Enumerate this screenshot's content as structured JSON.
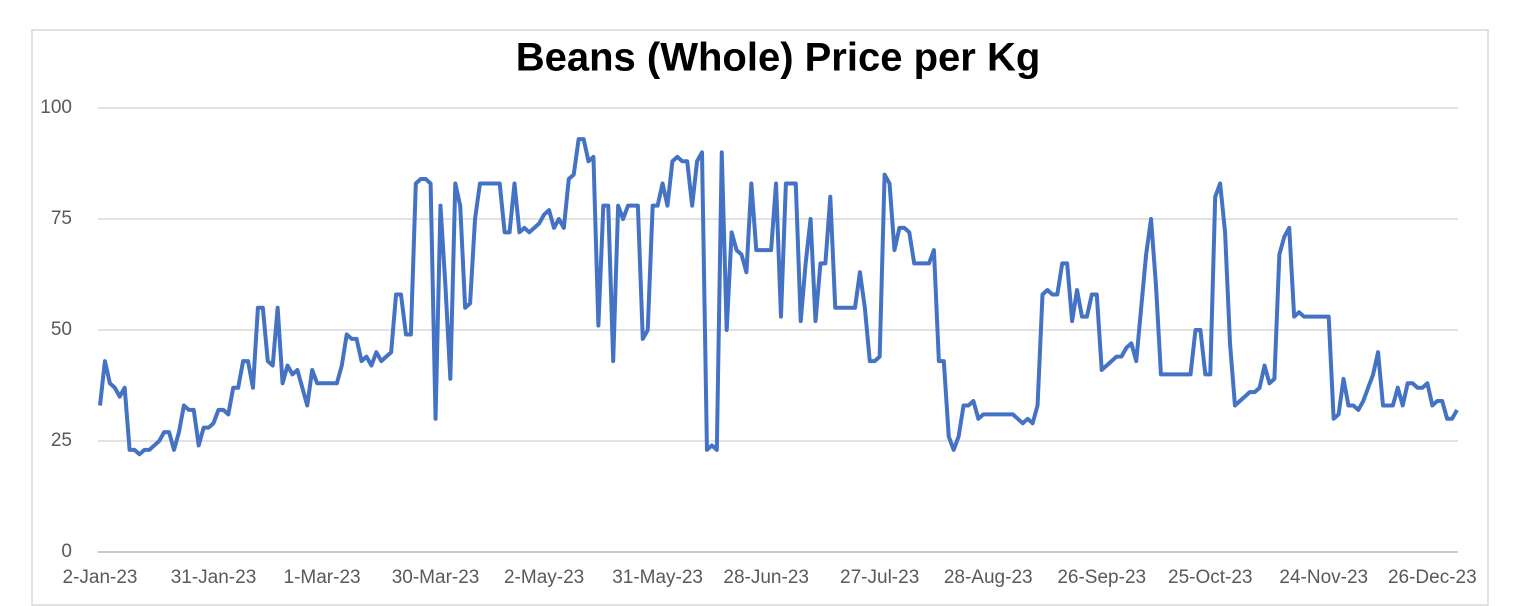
{
  "chart_data": {
    "type": "line",
    "title": "Beans (Whole) Price per Kg",
    "color": "#4472c4",
    "grid": true,
    "ylim": [
      0,
      100
    ],
    "yticks": [
      0,
      25,
      50,
      75,
      100
    ],
    "categories": [
      "2-Jan-23",
      null,
      null,
      null,
      null,
      null,
      null,
      null,
      null,
      null,
      null,
      null,
      null,
      null,
      null,
      null,
      null,
      null,
      null,
      null,
      null,
      null,
      null,
      "31-Jan-23",
      null,
      null,
      null,
      null,
      null,
      null,
      null,
      null,
      null,
      null,
      null,
      null,
      null,
      null,
      null,
      null,
      null,
      null,
      null,
      null,
      null,
      "1-Mar-23",
      null,
      null,
      null,
      null,
      null,
      null,
      null,
      null,
      null,
      null,
      null,
      null,
      null,
      null,
      null,
      null,
      null,
      null,
      null,
      null,
      null,
      null,
      "30-Mar-23",
      null,
      null,
      null,
      null,
      null,
      null,
      null,
      null,
      null,
      null,
      null,
      null,
      null,
      null,
      null,
      null,
      null,
      null,
      null,
      null,
      null,
      "2-May-23",
      null,
      null,
      null,
      null,
      null,
      null,
      null,
      null,
      null,
      null,
      null,
      null,
      null,
      null,
      null,
      null,
      null,
      null,
      null,
      null,
      null,
      null,
      "31-May-23",
      null,
      null,
      null,
      null,
      null,
      null,
      null,
      null,
      null,
      null,
      null,
      null,
      null,
      null,
      null,
      null,
      null,
      null,
      null,
      null,
      null,
      "28-Jun-23",
      null,
      null,
      null,
      null,
      null,
      null,
      null,
      null,
      null,
      null,
      null,
      null,
      null,
      null,
      null,
      null,
      null,
      null,
      null,
      null,
      null,
      null,
      "27-Jul-23",
      null,
      null,
      null,
      null,
      null,
      null,
      null,
      null,
      null,
      null,
      null,
      null,
      null,
      null,
      null,
      null,
      null,
      null,
      null,
      null,
      null,
      "28-Aug-23",
      null,
      null,
      null,
      null,
      null,
      null,
      null,
      null,
      null,
      null,
      null,
      null,
      null,
      null,
      null,
      null,
      null,
      null,
      null,
      null,
      null,
      null,
      "26-Sep-23",
      null,
      null,
      null,
      null,
      null,
      null,
      null,
      null,
      null,
      null,
      null,
      null,
      null,
      null,
      null,
      null,
      null,
      null,
      null,
      null,
      null,
      "25-Oct-23",
      null,
      null,
      null,
      null,
      null,
      null,
      null,
      null,
      null,
      null,
      null,
      null,
      null,
      null,
      null,
      null,
      null,
      null,
      null,
      null,
      null,
      null,
      "24-Nov-23",
      null,
      null,
      null,
      null,
      null,
      null,
      null,
      null,
      null,
      null,
      null,
      null,
      null,
      null,
      null,
      null,
      null,
      null,
      null,
      null,
      null,
      "26-Dec-23",
      null,
      null,
      null,
      null,
      null
    ],
    "values": [
      33,
      43,
      38,
      37,
      35,
      37,
      23,
      23,
      22,
      23,
      23,
      24,
      25,
      27,
      27,
      23,
      27,
      33,
      32,
      32,
      24,
      28,
      28,
      29,
      32,
      32,
      31,
      37,
      37,
      43,
      43,
      37,
      55,
      55,
      43,
      42,
      55,
      38,
      42,
      40,
      41,
      37,
      33,
      41,
      38,
      38,
      38,
      38,
      38,
      42,
      49,
      48,
      48,
      43,
      44,
      42,
      45,
      43,
      44,
      45,
      58,
      58,
      49,
      49,
      83,
      84,
      84,
      83,
      30,
      78,
      60,
      39,
      83,
      78,
      55,
      56,
      75,
      83,
      83,
      83,
      83,
      83,
      72,
      72,
      83,
      72,
      73,
      72,
      73,
      74,
      76,
      77,
      73,
      75,
      73,
      84,
      85,
      93,
      93,
      88,
      89,
      51,
      78,
      78,
      43,
      78,
      75,
      78,
      78,
      78,
      48,
      50,
      78,
      78,
      83,
      78,
      88,
      89,
      88,
      88,
      78,
      88,
      90,
      23,
      24,
      23,
      90,
      50,
      72,
      68,
      67,
      63,
      83,
      68,
      68,
      68,
      68,
      83,
      53,
      83,
      83,
      83,
      52,
      65,
      75,
      52,
      65,
      65,
      80,
      55,
      55,
      55,
      55,
      55,
      63,
      55,
      43,
      43,
      44,
      85,
      83,
      68,
      73,
      73,
      72,
      65,
      65,
      65,
      65,
      68,
      43,
      43,
      26,
      23,
      26,
      33,
      33,
      34,
      30,
      31,
      31,
      31,
      31,
      31,
      31,
      31,
      30,
      29,
      30,
      29,
      33,
      58,
      59,
      58,
      58,
      65,
      65,
      52,
      59,
      53,
      53,
      58,
      58,
      41,
      42,
      43,
      44,
      44,
      46,
      47,
      43,
      55,
      67,
      75,
      60,
      40,
      40,
      40,
      40,
      40,
      40,
      40,
      50,
      50,
      40,
      40,
      80,
      83,
      72,
      47,
      33,
      34,
      35,
      36,
      36,
      37,
      42,
      38,
      39,
      67,
      71,
      73,
      53,
      54,
      53,
      53,
      53,
      53,
      53,
      53,
      30,
      31,
      39,
      33,
      33,
      32,
      34,
      37,
      40,
      45,
      33,
      33,
      33,
      37,
      33,
      38,
      38,
      37,
      37,
      38,
      33,
      34,
      34,
      30,
      30,
      32
    ]
  }
}
